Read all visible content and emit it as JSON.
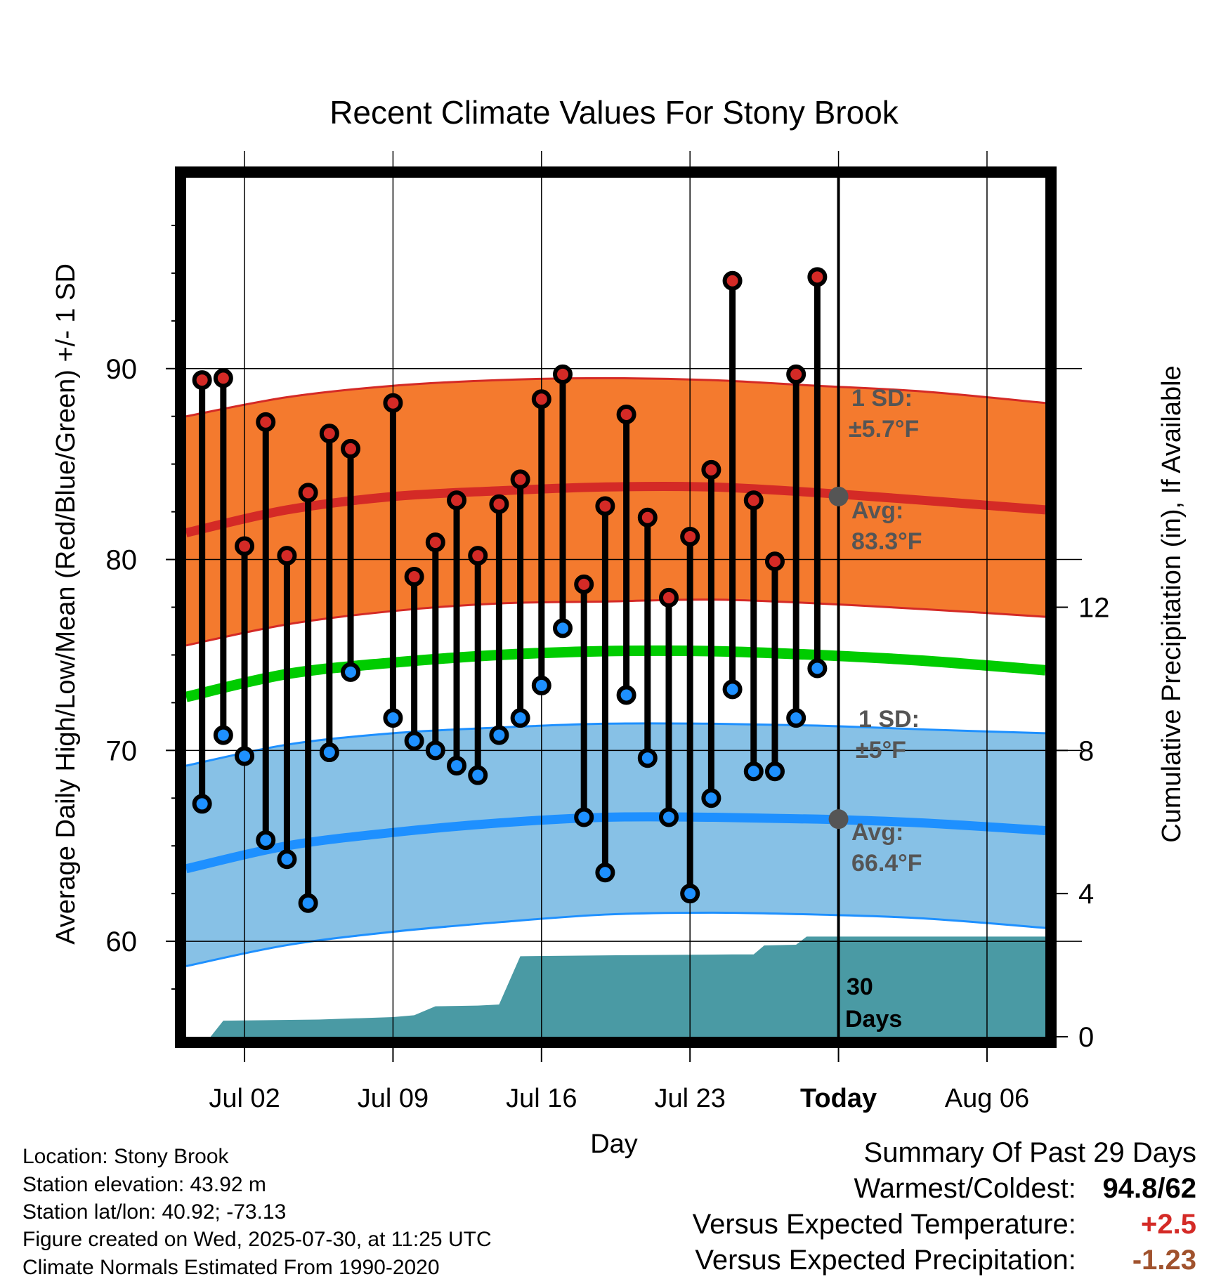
{
  "chart_data": {
    "type": "line",
    "title": "Recent Climate Values For Stony Brook",
    "xlabel": "Day",
    "ylabel_left": "Average Daily High/Low/Mean (Red/Blue/Green) +/- 1 SD",
    "ylabel_right": "Cumulative Precipitation (in), If Available",
    "x_tick_labels": [
      "Jul 02",
      "Jul 09",
      "Jul 16",
      "Jul 23",
      "Today",
      "Aug 06"
    ],
    "y_ticks_left": [
      "60",
      "70",
      "80",
      "90"
    ],
    "y_ticks_right": [
      "0",
      "4",
      "8",
      "12"
    ],
    "ylim_left": [
      55,
      100
    ],
    "ylim_right": [
      0,
      24
    ],
    "x_range_days_from_jul_02": [
      -2.75,
      37.75
    ],
    "grid": true,
    "today_day": 28,
    "days": [
      -2,
      -1,
      0,
      1,
      2,
      3,
      4,
      5,
      7,
      8,
      9,
      10,
      11,
      12,
      13,
      14,
      15,
      16,
      17,
      18,
      19,
      20,
      21,
      22,
      23,
      24,
      25,
      26,
      27
    ],
    "daily_high": [
      89.4,
      89.5,
      80.7,
      87.2,
      80.2,
      83.5,
      86.6,
      85.8,
      88.2,
      79.1,
      80.9,
      83.1,
      80.2,
      82.9,
      84.2,
      88.4,
      89.7,
      78.7,
      82.8,
      87.6,
      82.2,
      78.0,
      81.2,
      84.7,
      94.6,
      83.1,
      79.9,
      89.7,
      94.8
    ],
    "daily_low": [
      67.2,
      70.8,
      69.7,
      65.3,
      64.3,
      62.0,
      69.9,
      74.1,
      71.7,
      70.5,
      70.0,
      69.2,
      68.7,
      70.8,
      71.7,
      73.4,
      76.4,
      66.5,
      63.6,
      72.9,
      69.6,
      66.5,
      62.5,
      67.5,
      73.2,
      68.9,
      68.9,
      71.7,
      74.3
    ],
    "normal_days": [
      -2.75,
      2,
      7,
      12,
      17,
      22,
      27,
      32,
      37.75
    ],
    "normal_high_mean": [
      81.4,
      82.6,
      83.3,
      83.6,
      83.8,
      83.8,
      83.5,
      83.1,
      82.6
    ],
    "normal_high_upper": [
      87.5,
      88.5,
      89.1,
      89.4,
      89.5,
      89.4,
      89.1,
      88.8,
      88.2
    ],
    "normal_high_lower": [
      75.5,
      76.6,
      77.3,
      77.7,
      77.8,
      77.9,
      77.7,
      77.4,
      77.0
    ],
    "normal_mean": [
      72.8,
      74.0,
      74.6,
      75.0,
      75.2,
      75.2,
      75.0,
      74.7,
      74.2
    ],
    "normal_low_mean": [
      63.8,
      65.0,
      65.7,
      66.2,
      66.5,
      66.5,
      66.4,
      66.2,
      65.8
    ],
    "normal_low_upper": [
      69.2,
      70.3,
      70.9,
      71.2,
      71.4,
      71.4,
      71.3,
      71.1,
      70.9
    ],
    "normal_low_lower": [
      58.7,
      59.8,
      60.5,
      61.0,
      61.4,
      61.5,
      61.4,
      61.2,
      60.7
    ],
    "cumulative_precip_days": [
      -2.75,
      -1.6,
      -1.0,
      3.5,
      7.0,
      8.0,
      9.0,
      11.0,
      12.0,
      13.0,
      18.0,
      23.0,
      24.0,
      24.5,
      26.0,
      26.5,
      27.0,
      37.75
    ],
    "cumulative_precip_in": [
      0,
      0,
      0.45,
      0.48,
      0.55,
      0.6,
      0.85,
      0.87,
      0.9,
      2.25,
      2.28,
      2.3,
      2.3,
      2.55,
      2.57,
      2.8,
      2.8,
      2.8
    ],
    "annotations": {
      "high_sd": "1 SD:",
      "high_sd_val": "±5.7°F",
      "high_avg": "Avg:",
      "high_avg_val": "83.3°F",
      "low_sd": "1 SD:",
      "low_sd_val": "±5°F",
      "low_avg": "Avg:",
      "low_avg_val": "66.4°F",
      "precip_days_1": "30",
      "precip_days_2": "Days"
    },
    "colors": {
      "high_band": "#f47a2e",
      "high_line": "#d42a26",
      "low_band": "#87c1e6",
      "low_line": "#1e90ff",
      "mean_line": "#00cc00",
      "precip": "#4a9aa4",
      "high_dot": "#d42a26",
      "low_dot": "#1e90ff",
      "avg_dot": "#555555",
      "annotation": "#555555"
    }
  },
  "info": {
    "location": "Location: Stony Brook",
    "elevation": "Station elevation: 43.92 m",
    "latlon": "Station lat/lon: 40.92; -73.13",
    "created": "Figure created on Wed, 2025-07-30, at 11:25 UTC",
    "normals": "Climate Normals Estimated From 1990-2020"
  },
  "summary": {
    "title": "Summary Of Past 29 Days",
    "warm_cold_label": "Warmest/Coldest:",
    "warmest": "94.8",
    "coldest": "62",
    "temp_label": "Versus Expected Temperature:",
    "temp_value": "+2.5",
    "temp_color": "#d42a26",
    "precip_label": "Versus Expected Precipitation:",
    "precip_value": "-1.23",
    "precip_color": "#a0522d"
  }
}
